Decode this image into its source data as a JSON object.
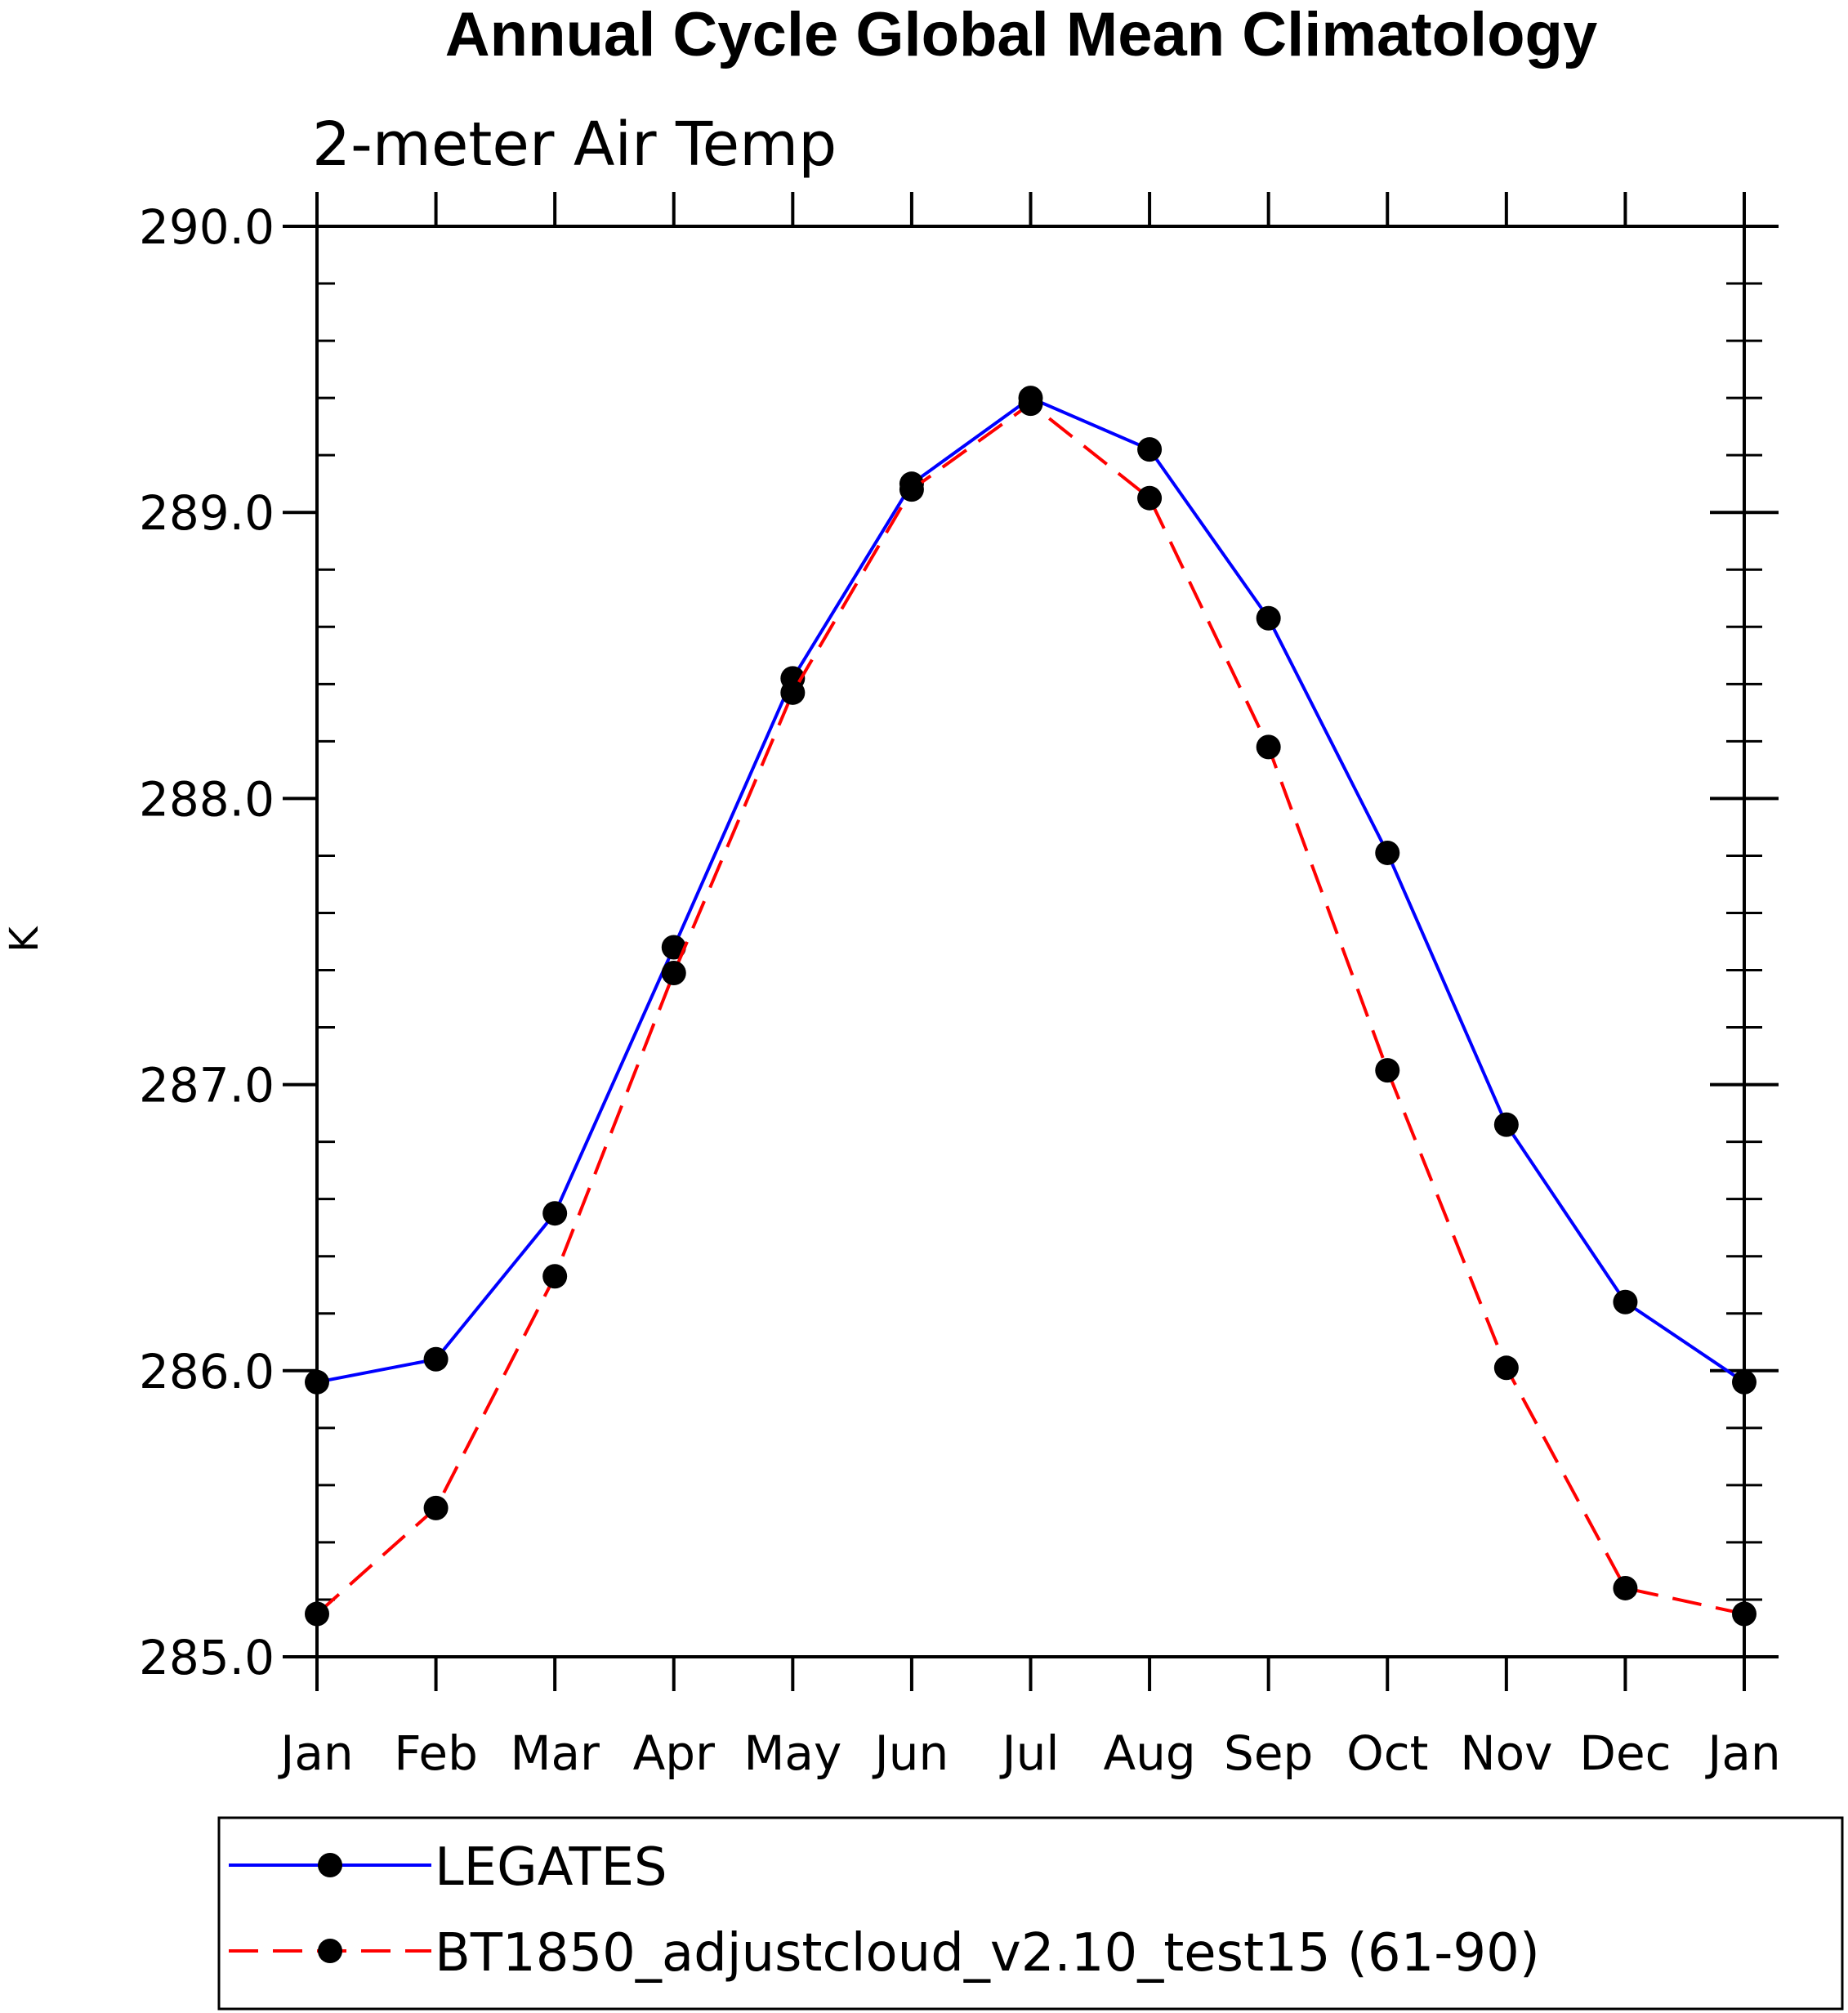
{
  "chart_data": {
    "type": "line",
    "title": "Annual Cycle Global Mean Climatology",
    "subtitle": "2-meter Air Temp",
    "xlabel": "",
    "ylabel": "K",
    "categories": [
      "Jan",
      "Feb",
      "Mar",
      "Apr",
      "May",
      "Jun",
      "Jul",
      "Aug",
      "Sep",
      "Oct",
      "Nov",
      "Dec",
      "Jan"
    ],
    "ylim": [
      285.0,
      290.0
    ],
    "yticks": [
      "285.0",
      "286.0",
      "287.0",
      "288.0",
      "289.0",
      "290.0"
    ],
    "grid": false,
    "legend_position": "bottom",
    "series": [
      {
        "name": "LEGATES",
        "color": "#0000ff",
        "dash": "solid",
        "values": [
          285.96,
          286.04,
          286.55,
          287.48,
          288.42,
          289.1,
          289.4,
          289.22,
          288.63,
          287.81,
          286.86,
          286.24,
          285.96
        ]
      },
      {
        "name": "BT1850_adjustcloud_v2.10_test15 (61-90)",
        "color": "#ff0000",
        "dash": "dashed",
        "values": [
          285.15,
          285.52,
          286.33,
          287.39,
          288.37,
          289.08,
          289.38,
          289.05,
          288.18,
          287.05,
          286.01,
          285.24,
          285.15
        ]
      }
    ]
  }
}
